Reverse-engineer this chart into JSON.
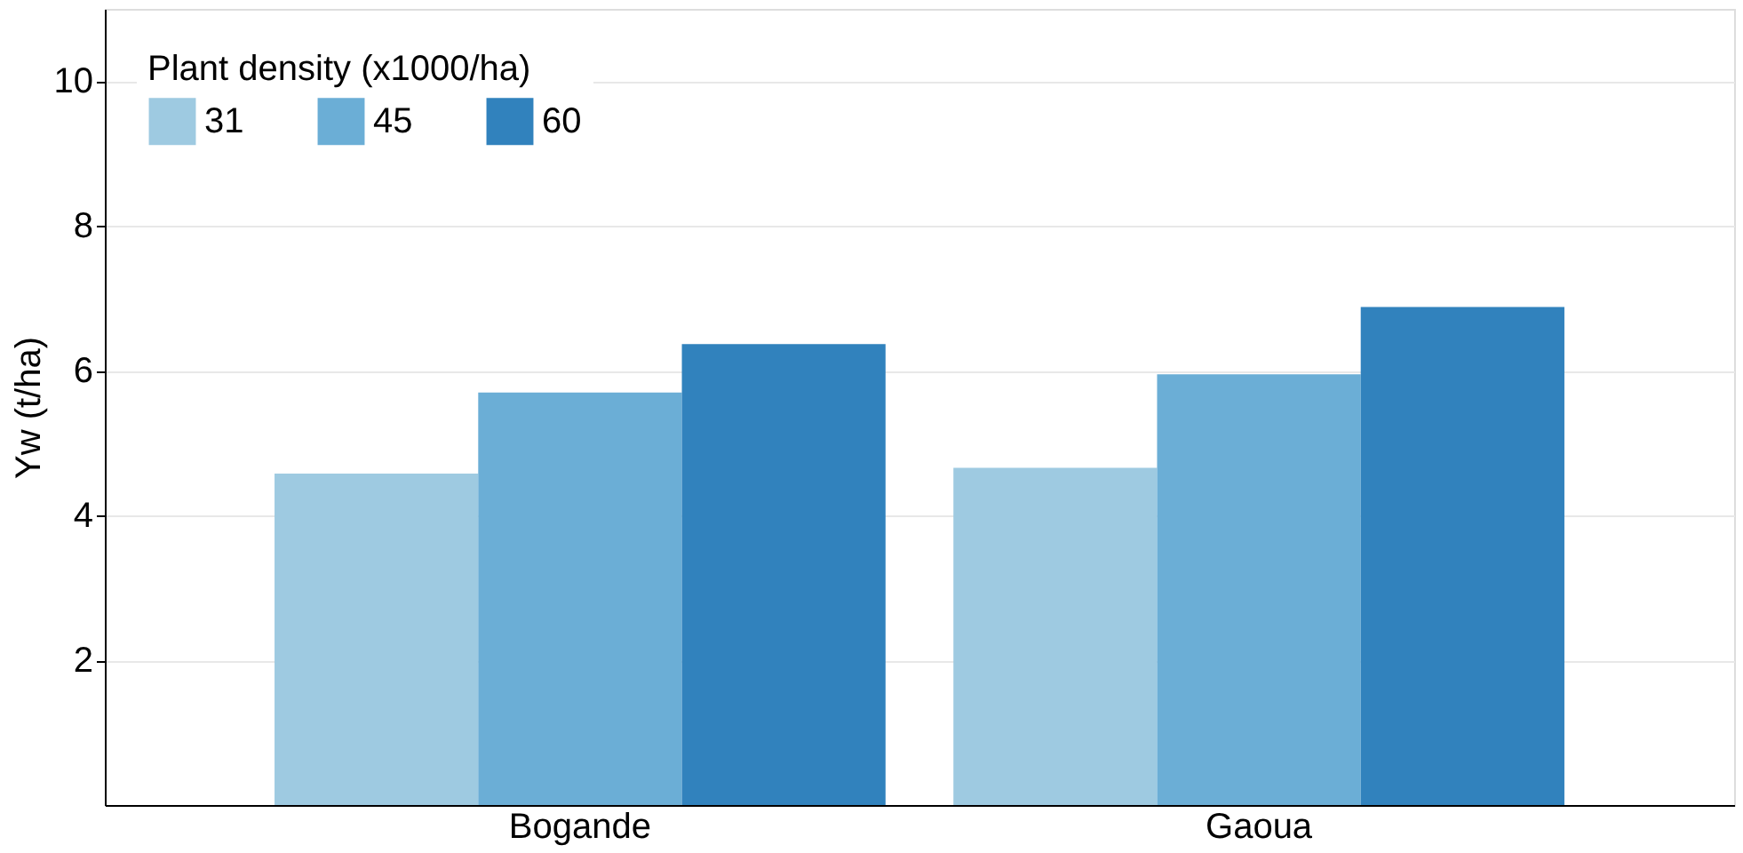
{
  "chart_data": {
    "type": "bar",
    "ylabel": "Yw (t/ha)",
    "legend_title": "Plant density (x1000/ha)",
    "categories": [
      "Bogande",
      "Gaoua"
    ],
    "series": [
      {
        "name": "31",
        "color": "#9ecae1",
        "values": [
          4.58,
          4.66
        ]
      },
      {
        "name": "45",
        "color": "#6baed6",
        "values": [
          5.7,
          5.95
        ]
      },
      {
        "name": "60",
        "color": "#3182bd",
        "values": [
          6.37,
          6.88
        ]
      }
    ],
    "ylim": [
      0,
      11
    ],
    "yticks": [
      2,
      4,
      6,
      8,
      10
    ],
    "grid": "y",
    "legend": "top left"
  }
}
